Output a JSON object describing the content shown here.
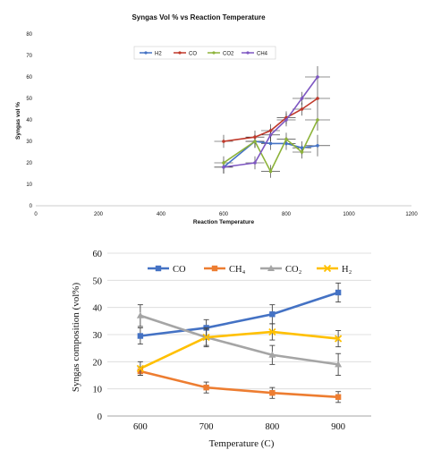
{
  "chart_data": [
    {
      "type": "line",
      "title": "Syngas Vol % vs Reaction Temperature",
      "xlabel": "Reaction Temperature",
      "ylabel": "Syngas vol %",
      "xlim": [
        0,
        1200
      ],
      "ylim": [
        0,
        80
      ],
      "x_ticks": [
        "0",
        "200",
        "400",
        "600",
        "800",
        "1000",
        "1200"
      ],
      "y_ticks": [
        "0",
        "10",
        "20",
        "30",
        "40",
        "50",
        "60",
        "70",
        "80"
      ],
      "legend_position": "top",
      "colors": {
        "H2": "#4472c4",
        "CO": "#c0392b",
        "CO2": "#8db33a",
        "CH4": "#7e57c2"
      },
      "series": [
        {
          "name": "H2",
          "x": [
            600,
            700,
            750,
            800,
            850,
            900
          ],
          "y": [
            18,
            30,
            29,
            29,
            27,
            28
          ]
        },
        {
          "name": "CO",
          "x": [
            600,
            700,
            750,
            800,
            850,
            900
          ],
          "y": [
            30,
            32,
            35,
            41,
            45,
            50
          ]
        },
        {
          "name": "CO2",
          "x": [
            600,
            700,
            750,
            800,
            850,
            900
          ],
          "y": [
            20,
            30,
            16,
            31,
            25,
            40
          ]
        },
        {
          "name": "CH4",
          "x": [
            600,
            700,
            750,
            800,
            850,
            900
          ],
          "y": [
            18,
            20,
            33,
            40,
            50,
            60
          ]
        }
      ],
      "error": {
        "y": [
          3,
          3,
          3,
          3,
          3,
          5
        ],
        "x": [
          30,
          30,
          30,
          30,
          30,
          40
        ]
      }
    },
    {
      "type": "line",
      "title": "",
      "xlabel": "Temperature (C)",
      "ylabel": "Syngas composition (vol%)",
      "xlim": [
        550,
        950
      ],
      "ylim": [
        0,
        60
      ],
      "x_ticks": [
        "600",
        "700",
        "800",
        "900"
      ],
      "y_ticks": [
        "0",
        "10",
        "20",
        "30",
        "40",
        "50",
        "60"
      ],
      "legend_position": "top",
      "series": [
        {
          "name": "CO",
          "color": "#4472c4",
          "marker": "square",
          "x": [
            600,
            700,
            800,
            900
          ],
          "y": [
            29.5,
            32.5,
            37.5,
            45.5
          ],
          "err": [
            3,
            3,
            3.5,
            3.5
          ]
        },
        {
          "name": "CH₄",
          "color": "#ed7d31",
          "marker": "square",
          "x": [
            600,
            700,
            800,
            900
          ],
          "y": [
            16.5,
            10.5,
            8.5,
            7
          ],
          "err": [
            1.5,
            2,
            2,
            2
          ]
        },
        {
          "name": "CO₂",
          "color": "#a5a5a5",
          "marker": "triangle",
          "x": [
            600,
            700,
            800,
            900
          ],
          "y": [
            37,
            29,
            22.5,
            19
          ],
          "err": [
            4,
            3.5,
            3.5,
            4
          ]
        },
        {
          "name": "H₂",
          "color": "#ffc000",
          "marker": "x",
          "x": [
            600,
            700,
            800,
            900
          ],
          "y": [
            17.5,
            29,
            31,
            28.5
          ],
          "err": [
            2.5,
            3,
            3,
            3
          ]
        }
      ]
    }
  ]
}
